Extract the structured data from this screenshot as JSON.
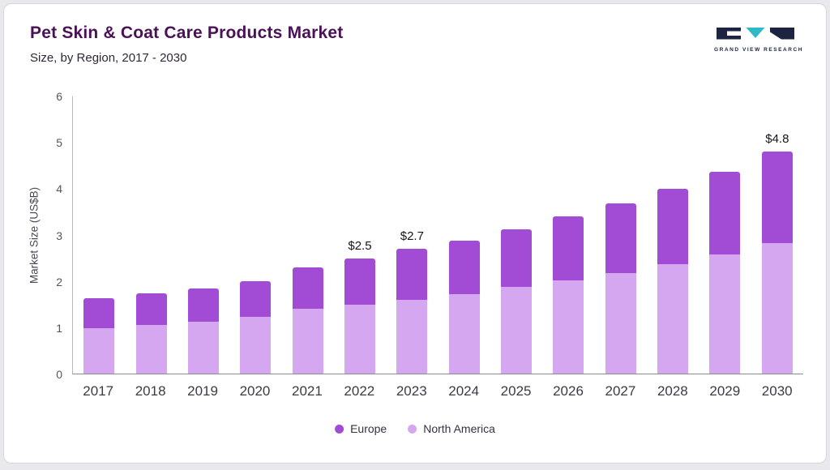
{
  "page": {
    "title": "Pet Skin & Coat Care Products Market",
    "subtitle": "Size, by Region, 2017 - 2030"
  },
  "logo": {
    "text": "GRAND VIEW RESEARCH"
  },
  "colors": {
    "title": "#4a1158",
    "europe": "#a24cd6",
    "north_america": "#d4a7f0",
    "logo_navy": "#1c2442",
    "logo_teal": "#2fb9c7"
  },
  "chart_data": {
    "type": "bar",
    "stacked": true,
    "title": "Pet Skin & Coat Care Products Market Size, by Region, 2017 - 2030",
    "xlabel": "",
    "ylabel": "Market Size (US$B)",
    "ylim": [
      0,
      6
    ],
    "yticks": [
      0,
      1,
      2,
      3,
      4,
      5,
      6
    ],
    "grid": false,
    "legend_position": "bottom",
    "categories": [
      "2017",
      "2018",
      "2019",
      "2020",
      "2021",
      "2022",
      "2023",
      "2024",
      "2025",
      "2026",
      "2027",
      "2028",
      "2029",
      "2030"
    ],
    "series": [
      {
        "name": "Europe",
        "color": "#a24cd6",
        "values": [
          0.65,
          0.68,
          0.72,
          0.78,
          0.9,
          1.0,
          1.1,
          1.16,
          1.25,
          1.38,
          1.51,
          1.63,
          1.79,
          1.97
        ]
      },
      {
        "name": "North America",
        "color": "#d4a7f0",
        "values": [
          0.98,
          1.05,
          1.13,
          1.22,
          1.4,
          1.5,
          1.6,
          1.72,
          1.87,
          2.02,
          2.17,
          2.37,
          2.58,
          2.83
        ]
      }
    ],
    "totals": [
      1.63,
      1.73,
      1.85,
      2.0,
      2.3,
      2.5,
      2.7,
      2.88,
      3.12,
      3.4,
      3.68,
      4.0,
      4.37,
      4.8
    ],
    "annotations": [
      {
        "category": "2022",
        "label": "$2.5"
      },
      {
        "category": "2023",
        "label": "$2.7"
      },
      {
        "category": "2030",
        "label": "$4.8"
      }
    ],
    "legend": [
      {
        "label": "Europe",
        "color": "#a24cd6"
      },
      {
        "label": "North America",
        "color": "#d4a7f0"
      }
    ]
  }
}
